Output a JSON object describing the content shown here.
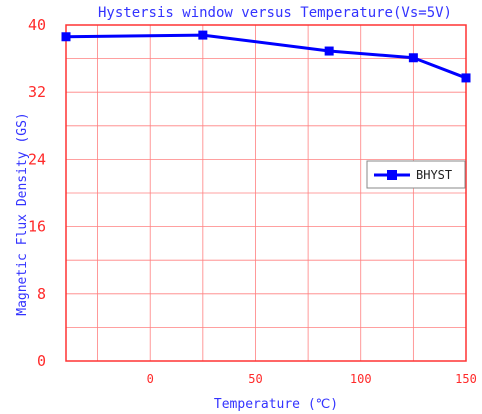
{
  "chart_data": {
    "type": "line",
    "title": "Hystersis window versus Temperature(Vs=5V)",
    "xlabel": "Temperature (℃)",
    "ylabel": "Magnetic Flux Density (GS)",
    "xlim": [
      -40,
      150
    ],
    "ylim": [
      0,
      40
    ],
    "xticks": [
      0,
      50,
      100,
      150
    ],
    "yticks": [
      0,
      8,
      16,
      24,
      32,
      40
    ],
    "grid": true,
    "legend_position": "right",
    "series": [
      {
        "name": "BHYST",
        "color": "#0000ff",
        "marker": "square",
        "x": [
          -40,
          25,
          85,
          125,
          150
        ],
        "y": [
          38.6,
          38.8,
          36.9,
          36.1,
          33.7
        ]
      }
    ]
  },
  "colors": {
    "grid": "#ff8080",
    "frame": "#ff3333",
    "tick_text": "#ff2a2a",
    "label_text": "#3333ff",
    "series": "#0000ff"
  }
}
